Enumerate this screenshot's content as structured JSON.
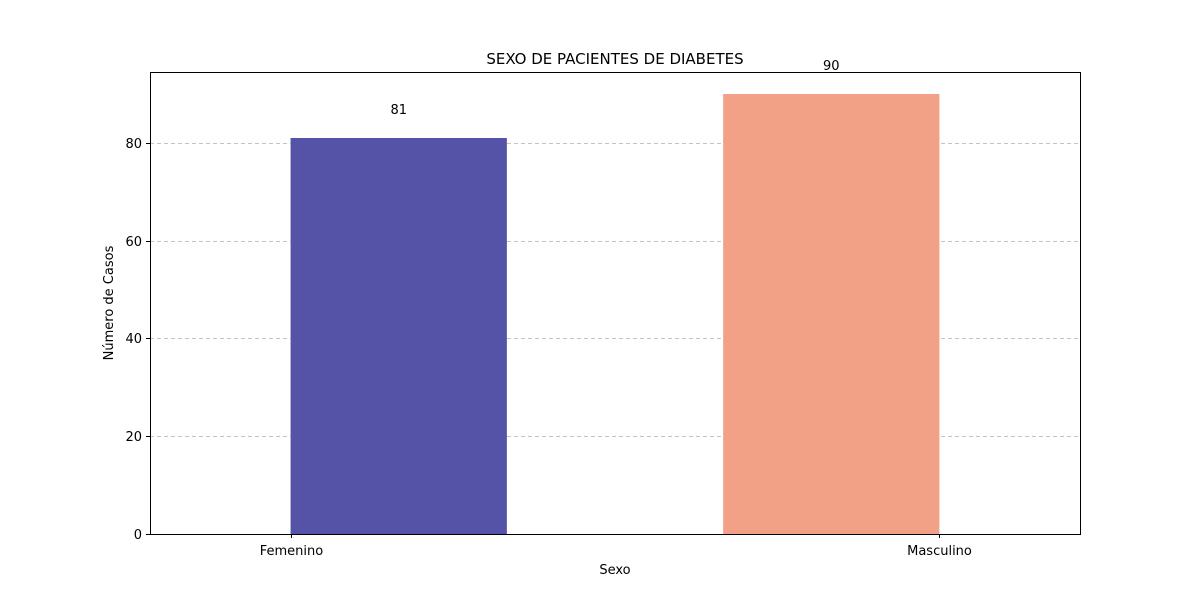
{
  "chart_data": {
    "type": "bar",
    "title": "SEXO DE PACIENTES DE DIABETES",
    "xlabel": "Sexo",
    "ylabel": "Número de Casos",
    "categories": [
      "Femenino",
      "Masculino"
    ],
    "values": [
      81,
      90
    ],
    "data_labels": [
      "81",
      "90"
    ],
    "colors": [
      "#5453a8",
      "#f2a186"
    ],
    "ylim": [
      0,
      94.5
    ],
    "yticks": [
      0,
      20,
      40,
      60,
      80
    ],
    "ytick_labels": [
      "0",
      "20",
      "40",
      "60",
      "80"
    ],
    "grid": "y, dashed",
    "legend": "none"
  }
}
